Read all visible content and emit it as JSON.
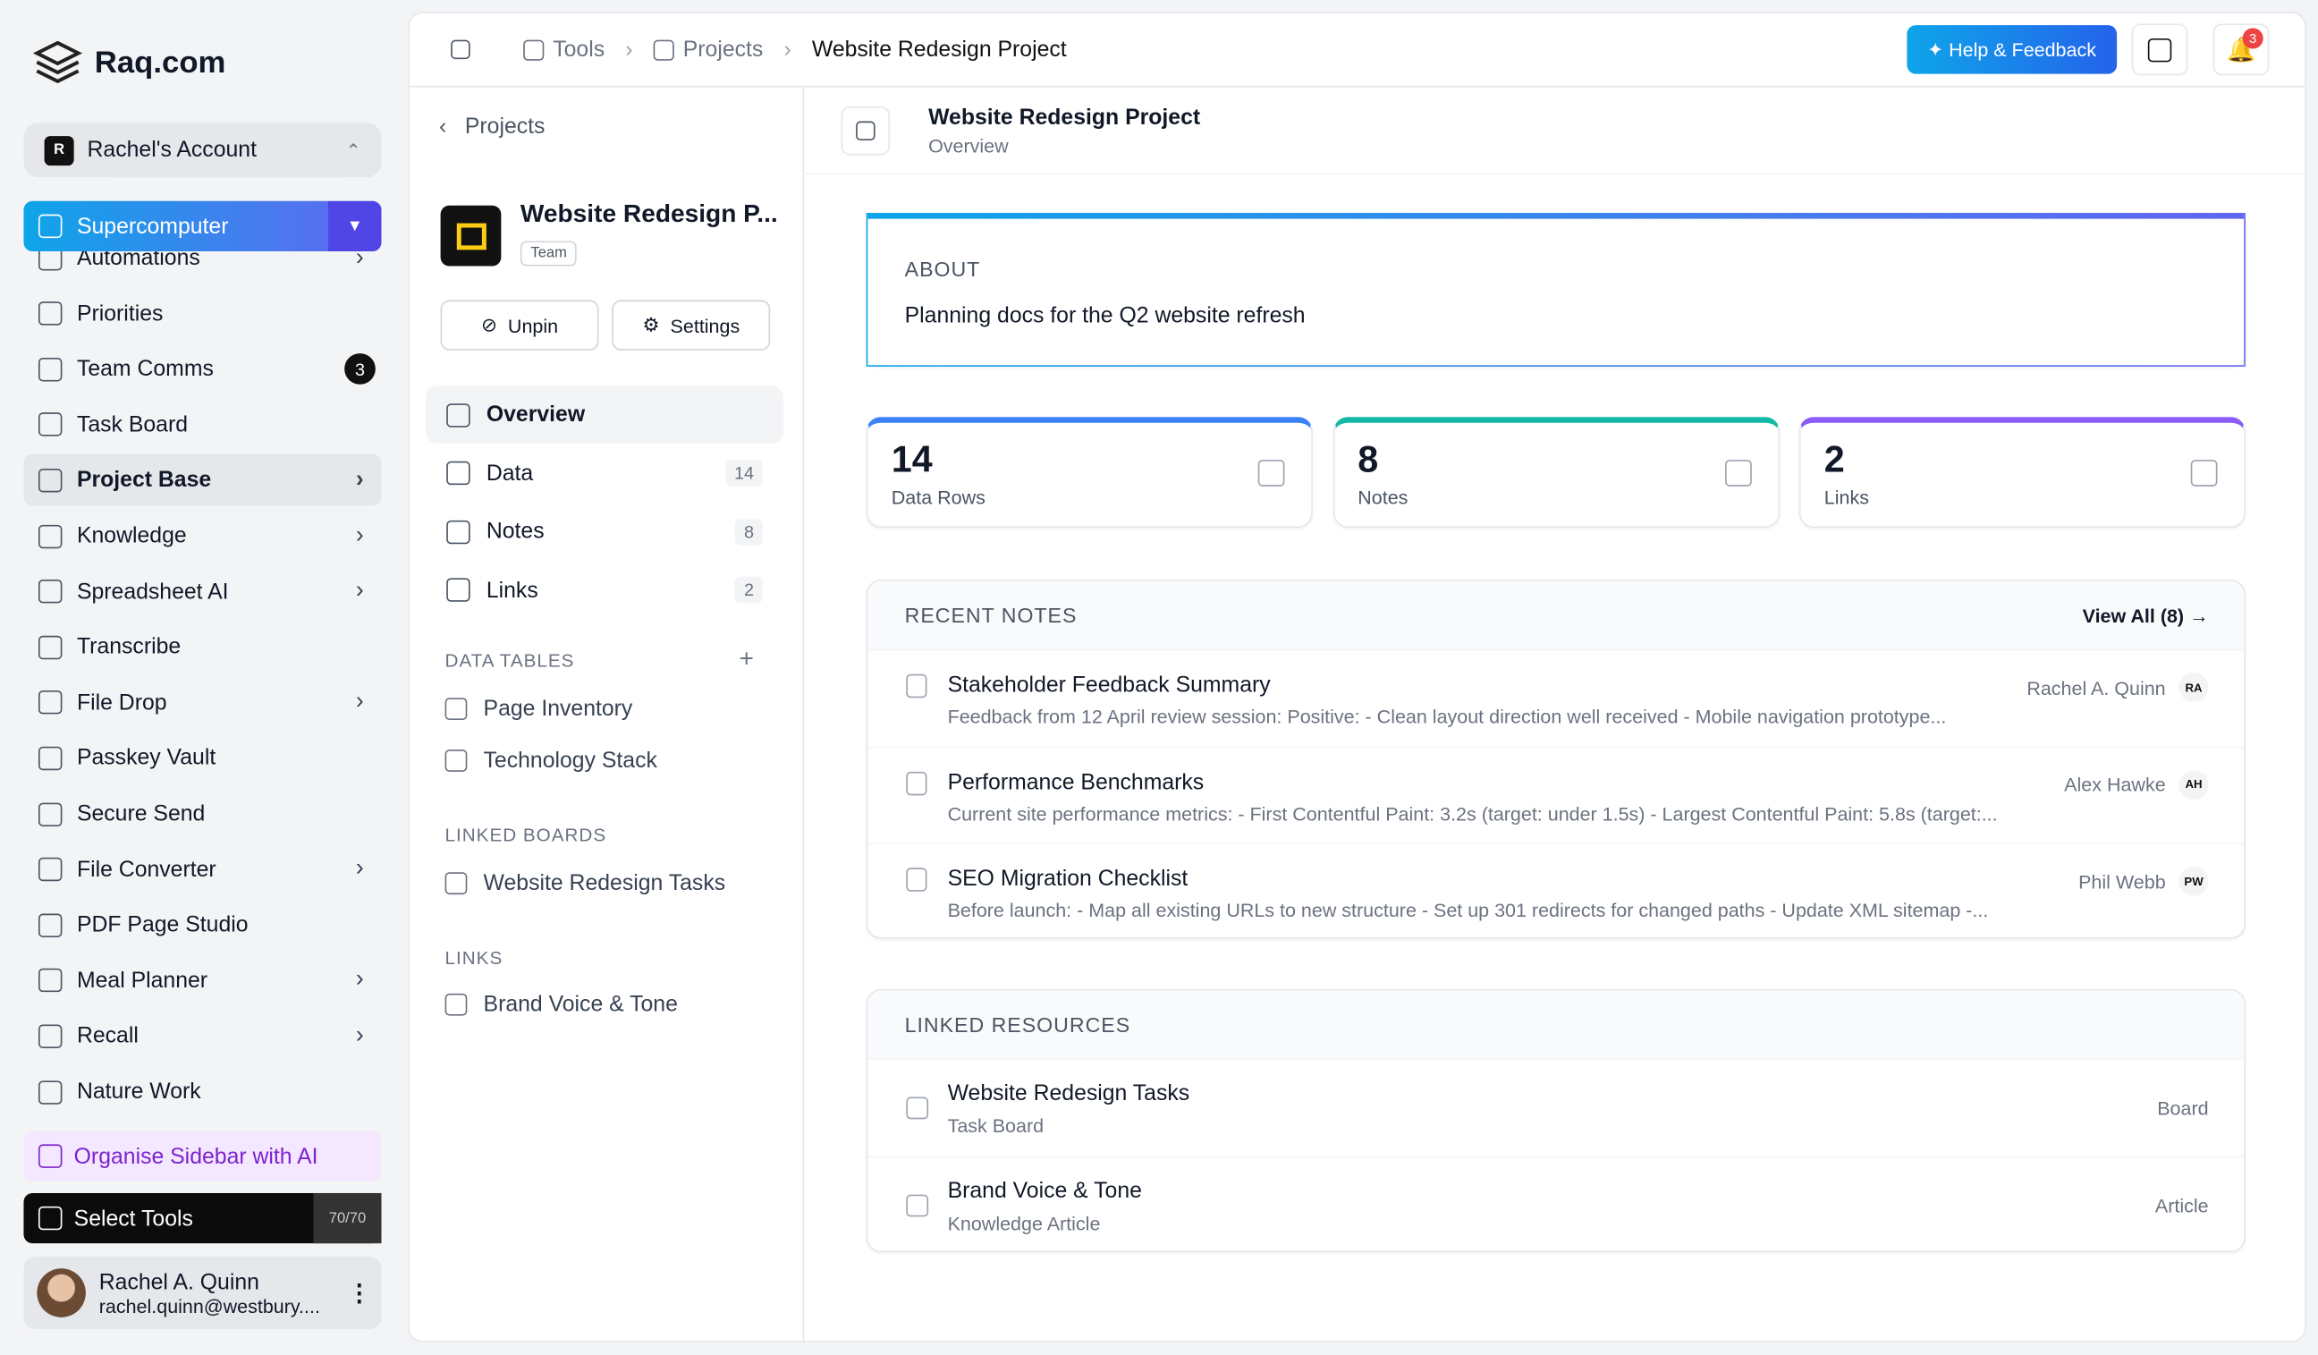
{
  "sidebar": {
    "brand": "Raq.com",
    "account": "Rachel's Account",
    "account_initial": "R",
    "supercomputer": "Supercomputer",
    "nav": [
      {
        "label": "Automations",
        "arrow": true
      },
      {
        "label": "Priorities"
      },
      {
        "label": "Team Comms",
        "badge": 3
      },
      {
        "label": "Task Board"
      },
      {
        "label": "Project Base",
        "arrow": true,
        "active": true
      },
      {
        "label": "Knowledge",
        "arrow": true
      },
      {
        "label": "Spreadsheet AI",
        "arrow": true
      },
      {
        "label": "Transcribe"
      },
      {
        "label": "File Drop",
        "arrow": true
      },
      {
        "label": "Passkey Vault"
      },
      {
        "label": "Secure Send"
      },
      {
        "label": "File Converter",
        "arrow": true
      },
      {
        "label": "PDF Page Studio"
      },
      {
        "label": "Meal Planner",
        "arrow": true
      },
      {
        "label": "Recall",
        "arrow": true
      },
      {
        "label": "Nature Work"
      }
    ],
    "organise": "Organise Sidebar with AI",
    "select_tools": "Select Tools",
    "tools_count": "70/70",
    "user": {
      "name": "Rachel A. Quinn",
      "email": "rachel.quinn@westbury...."
    }
  },
  "topbar": {
    "breadcrumbs": [
      "Tools",
      "Projects",
      "Website Redesign Project"
    ],
    "help": "Help & Feedback",
    "notifications": 3
  },
  "project_panel": {
    "back": "Projects",
    "name": "Website Redesign P...",
    "tag": "Team",
    "unpin": "Unpin",
    "settings": "Settings",
    "nav": [
      {
        "label": "Overview",
        "active": true
      },
      {
        "label": "Data",
        "count": 14
      },
      {
        "label": "Notes",
        "count": 8
      },
      {
        "label": "Links",
        "count": 2
      }
    ],
    "sections": [
      {
        "heading": "DATA TABLES",
        "add": true,
        "items": [
          "Page Inventory",
          "Technology Stack"
        ]
      },
      {
        "heading": "LINKED BOARDS",
        "items": [
          "Website Redesign Tasks"
        ]
      },
      {
        "heading": "LINKS",
        "items": [
          "Brand Voice & Tone"
        ]
      }
    ]
  },
  "main": {
    "title": "Website Redesign Project",
    "subtitle": "Overview",
    "about": {
      "heading": "ABOUT",
      "text": "Planning docs for the Q2 website refresh"
    },
    "stats": [
      {
        "value": 14,
        "label": "Data Rows",
        "color": "#3b82f6"
      },
      {
        "value": 8,
        "label": "Notes",
        "color": "#14b8a6"
      },
      {
        "value": 2,
        "label": "Links",
        "color": "#8b5cf6"
      }
    ],
    "recent_notes": {
      "heading": "RECENT NOTES",
      "view_all": "View All (8)",
      "items": [
        {
          "title": "Stakeholder Feedback Summary",
          "excerpt": "Feedback from 12 April review session: Positive: - Clean layout direction well received - Mobile navigation prototype...",
          "author": "Rachel A. Quinn",
          "initials": "RA"
        },
        {
          "title": "Performance Benchmarks",
          "excerpt": "Current site performance metrics: - First Contentful Paint: 3.2s (target: under 1.5s) - Largest Contentful Paint: 5.8s (target:...",
          "author": "Alex Hawke",
          "initials": "AH"
        },
        {
          "title": "SEO Migration Checklist",
          "excerpt": "Before launch: - Map all existing URLs to new structure - Set up 301 redirects for changed paths - Update XML sitemap -...",
          "author": "Phil Webb",
          "initials": "PW"
        }
      ]
    },
    "linked_resources": {
      "heading": "LINKED RESOURCES",
      "items": [
        {
          "title": "Website Redesign Tasks",
          "subtitle": "Task Board",
          "kind": "Board"
        },
        {
          "title": "Brand Voice & Tone",
          "subtitle": "Knowledge Article",
          "kind": "Article"
        }
      ]
    }
  }
}
